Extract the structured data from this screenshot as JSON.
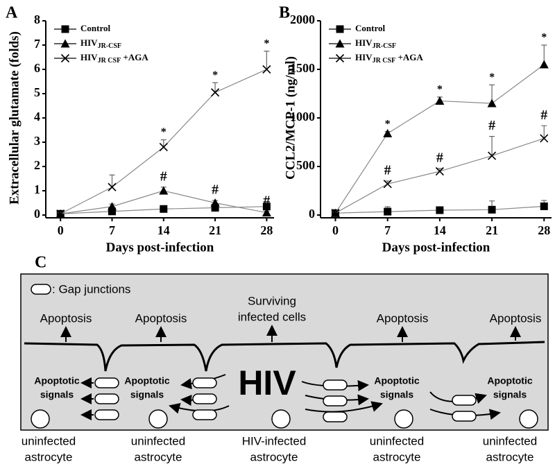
{
  "chart_data": [
    {
      "type": "line",
      "panel_label": "A",
      "x_label": "Days post-infection",
      "y_label": "Extracellular glutamate (folds)",
      "x": [
        0,
        7,
        14,
        21,
        28
      ],
      "xlim": [
        -2,
        29
      ],
      "xticks": [
        0,
        7,
        14,
        21,
        28
      ],
      "ylim": [
        0,
        8
      ],
      "yticks": [
        0,
        1,
        2,
        3,
        4,
        5,
        6,
        7,
        8
      ],
      "series": [
        {
          "name": "Control",
          "marker": "square",
          "color": "#000000",
          "values": [
            0.05,
            0.15,
            0.25,
            0.3,
            0.35
          ],
          "errors": [
            0.05,
            0.05,
            0.05,
            0.08,
            0.1
          ],
          "annotations": [
            null,
            null,
            null,
            null,
            null
          ]
        },
        {
          "name": "HIV",
          "name_subscript": "JR-CSF",
          "marker": "triangle",
          "color": "#000000",
          "values": [
            0.05,
            0.35,
            1.0,
            0.5,
            0.1
          ],
          "errors": [
            0.05,
            0.1,
            0.15,
            0.1,
            0.05
          ],
          "annotations": [
            null,
            null,
            "#",
            "#",
            "#"
          ]
        },
        {
          "name": "HIV",
          "name_subscript": "JR CSF",
          "name_suffix": " +AGA",
          "marker": "x",
          "color": "#000000",
          "values": [
            0.05,
            1.15,
            2.8,
            5.05,
            6.0
          ],
          "errors": [
            0.05,
            0.5,
            0.3,
            0.4,
            0.75
          ],
          "annotations": [
            null,
            null,
            "*",
            "*",
            "*"
          ]
        }
      ]
    },
    {
      "type": "line",
      "panel_label": "B",
      "x_label": "Days post-infection",
      "y_label": "CCL2/MCP-1 (ng/ml)",
      "x": [
        0,
        7,
        14,
        21,
        28
      ],
      "xlim": [
        -2,
        29
      ],
      "xticks": [
        0,
        7,
        14,
        21,
        28
      ],
      "ylim": [
        0,
        2000
      ],
      "yticks": [
        0,
        500,
        1000,
        1500,
        2000
      ],
      "series": [
        {
          "name": "Control",
          "marker": "square",
          "color": "#000000",
          "values": [
            20,
            35,
            50,
            55,
            90
          ],
          "errors": [
            10,
            50,
            30,
            90,
            60
          ],
          "annotations": [
            null,
            null,
            null,
            null,
            null
          ]
        },
        {
          "name": "HIV",
          "name_subscript": "JR-CSF",
          "marker": "triangle",
          "color": "#000000",
          "values": [
            20,
            840,
            1175,
            1150,
            1550
          ],
          "errors": [
            10,
            20,
            40,
            190,
            200
          ],
          "annotations": [
            null,
            "*",
            "*",
            "*",
            "*"
          ]
        },
        {
          "name": "HIV",
          "name_subscript": "JR CSF",
          "name_suffix": " +AGA",
          "marker": "x",
          "color": "#000000",
          "values": [
            20,
            320,
            450,
            610,
            790
          ],
          "errors": [
            10,
            30,
            30,
            200,
            130
          ],
          "annotations": [
            null,
            "#",
            "#",
            "#",
            "#"
          ]
        }
      ]
    }
  ],
  "diagram": {
    "panel_label": "C",
    "legend": ": Gap junctions",
    "top_labels": [
      [
        "Apoptosis"
      ],
      [
        "Apoptosis"
      ],
      [
        "Surviving",
        "infected cells"
      ],
      [
        "Apoptosis"
      ],
      [
        "Apoptosis"
      ]
    ],
    "center_label": "HIV",
    "signal_labels": [
      [
        "Apoptotic",
        "signals"
      ],
      [
        "Apoptotic",
        "signals"
      ],
      [
        "Apoptotic",
        "signals"
      ],
      [
        "Apoptotic",
        "signals"
      ]
    ],
    "cell_labels": [
      [
        "uninfected",
        "astrocyte"
      ],
      [
        "uninfected",
        "astrocyte"
      ],
      [
        "HIV-infected",
        "astrocyte"
      ],
      [
        "uninfected",
        "astrocyte"
      ],
      [
        "uninfected",
        "astrocyte"
      ]
    ]
  }
}
